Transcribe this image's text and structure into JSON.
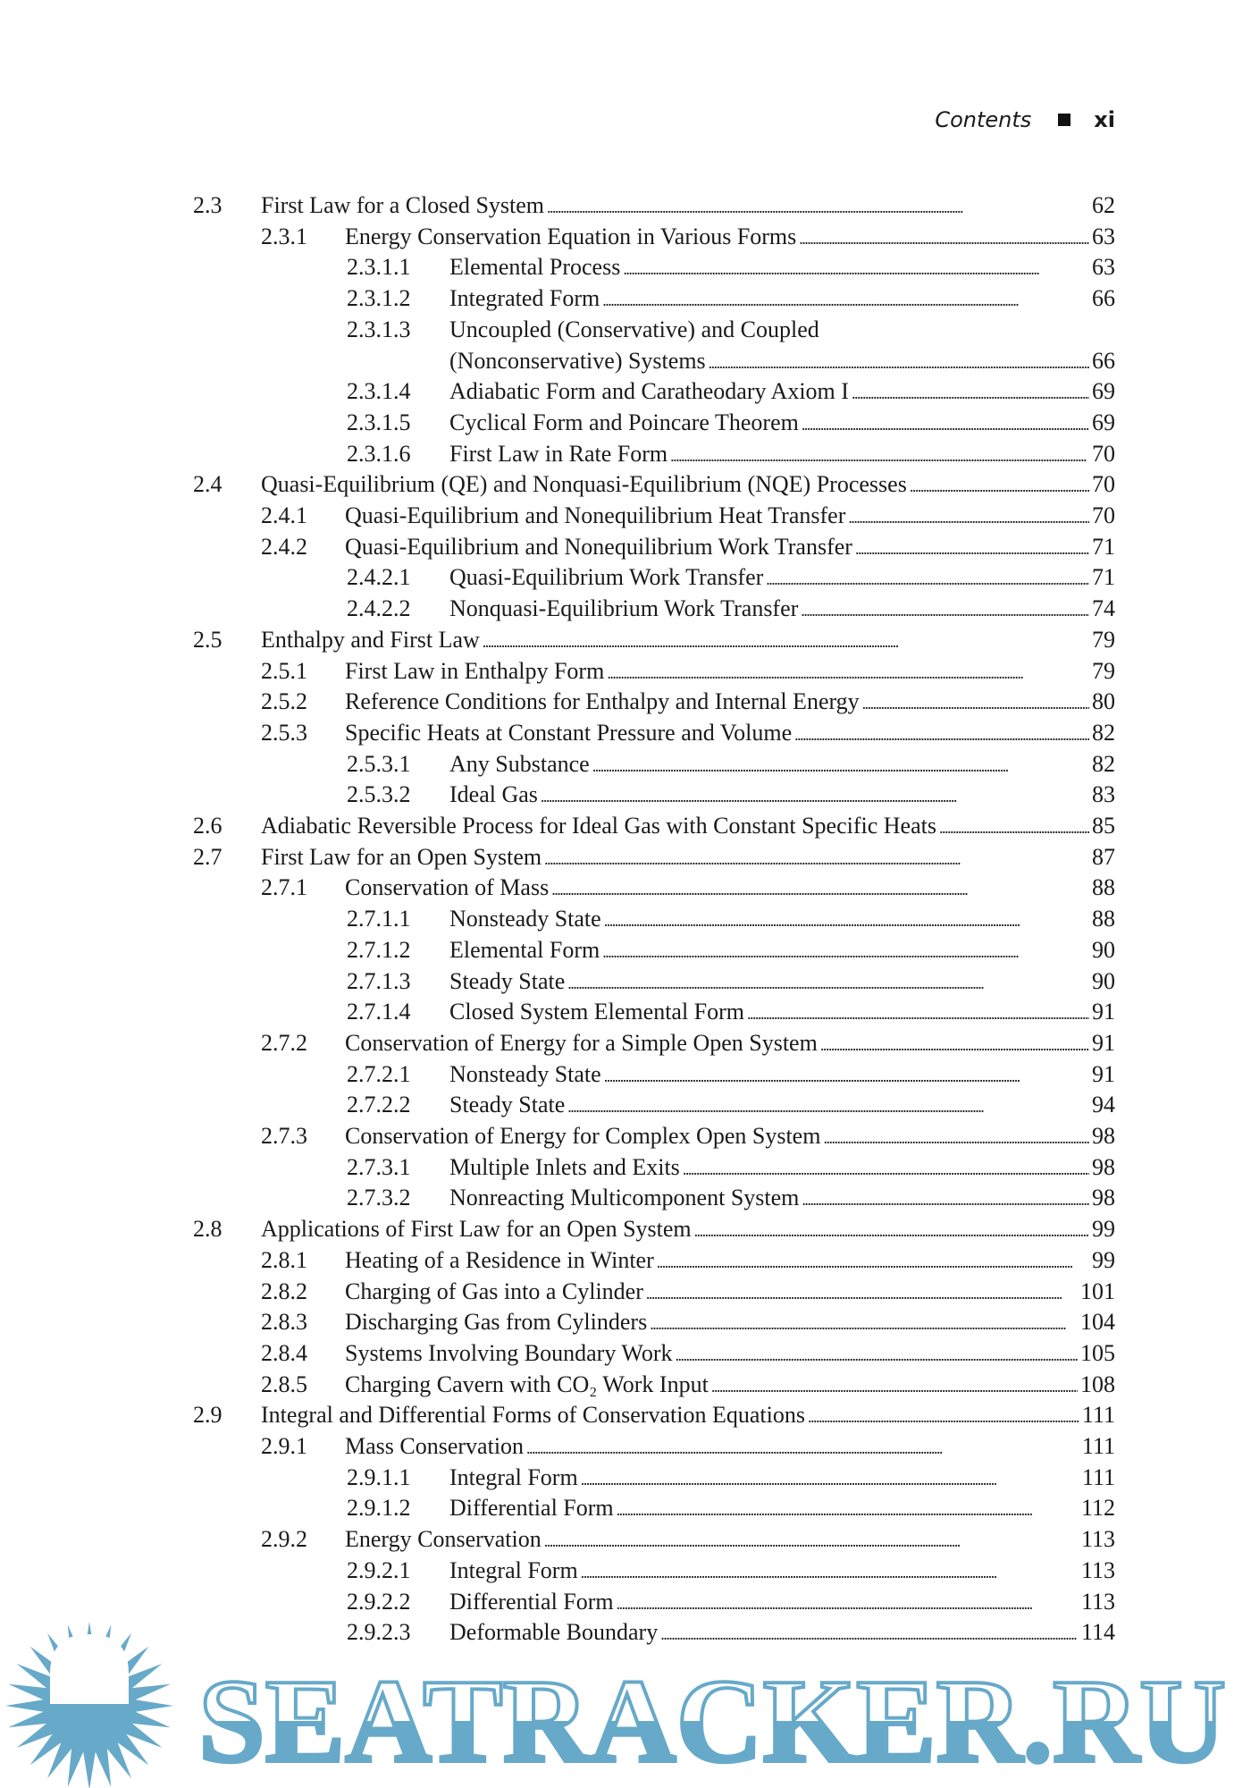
{
  "header": {
    "title": "Contents",
    "page": "xi"
  },
  "entries": [
    {
      "num": "2.3",
      "title": "First Law for a Closed System",
      "page": "62",
      "level": 1
    },
    {
      "num": "2.3.1",
      "title": "Energy Conservation Equation in Various Forms",
      "page": "63",
      "level": 2
    },
    {
      "num": "2.3.1.1",
      "title": "Elemental Process",
      "page": "63",
      "level": 3
    },
    {
      "num": "2.3.1.2",
      "title": "Integrated Form",
      "page": "66",
      "level": 3
    },
    {
      "num": "2.3.1.3",
      "title": "Uncoupled (Conservative) and Coupled",
      "page": "",
      "level": 3
    },
    {
      "num": "",
      "title": "(Nonconservative) Systems",
      "page": "66",
      "level": 3
    },
    {
      "num": "2.3.1.4",
      "title": "Adiabatic Form and Caratheodary Axiom I",
      "page": "69",
      "level": 3
    },
    {
      "num": "2.3.1.5",
      "title": "Cyclical Form and Poincare Theorem",
      "page": "69",
      "level": 3
    },
    {
      "num": "2.3.1.6",
      "title": "First Law in Rate Form",
      "page": "70",
      "level": 3
    },
    {
      "num": "2.4",
      "title": "Quasi-Equilibrium (QE) and Nonquasi-Equilibrium (NQE) Processes",
      "page": "70",
      "level": 1
    },
    {
      "num": "2.4.1",
      "title": "Quasi-Equilibrium and Nonequilibrium Heat Transfer",
      "page": "70",
      "level": 2
    },
    {
      "num": "2.4.2",
      "title": "Quasi-Equilibrium and Nonequilibrium Work Transfer",
      "page": "71",
      "level": 2
    },
    {
      "num": "2.4.2.1",
      "title": "Quasi-Equilibrium Work Transfer",
      "page": "71",
      "level": 3
    },
    {
      "num": "2.4.2.2",
      "title": "Nonquasi-Equilibrium Work Transfer",
      "page": "74",
      "level": 3
    },
    {
      "num": "2.5",
      "title": "Enthalpy and First Law",
      "page": "79",
      "level": 1
    },
    {
      "num": "2.5.1",
      "title": "First Law in Enthalpy Form",
      "page": "79",
      "level": 2
    },
    {
      "num": "2.5.2",
      "title": "Reference Conditions for Enthalpy and Internal Energy",
      "page": "80",
      "level": 2
    },
    {
      "num": "2.5.3",
      "title": "Specific Heats at Constant Pressure and Volume",
      "page": "82",
      "level": 2
    },
    {
      "num": "2.5.3.1",
      "title": "Any Substance",
      "page": "82",
      "level": 3
    },
    {
      "num": "2.5.3.2",
      "title": "Ideal Gas",
      "page": "83",
      "level": 3
    },
    {
      "num": "2.6",
      "title": "Adiabatic Reversible Process for Ideal Gas with Constant Specific Heats",
      "page": "85",
      "level": 1
    },
    {
      "num": "2.7",
      "title": "First Law for an Open System",
      "page": "87",
      "level": 1
    },
    {
      "num": "2.7.1",
      "title": "Conservation of Mass",
      "page": "88",
      "level": 2
    },
    {
      "num": "2.7.1.1",
      "title": "Nonsteady State",
      "page": "88",
      "level": 3
    },
    {
      "num": "2.7.1.2",
      "title": "Elemental Form",
      "page": "90",
      "level": 3
    },
    {
      "num": "2.7.1.3",
      "title": "Steady State",
      "page": "90",
      "level": 3
    },
    {
      "num": "2.7.1.4",
      "title": "Closed System Elemental Form",
      "page": "91",
      "level": 3
    },
    {
      "num": "2.7.2",
      "title": "Conservation of Energy for a Simple Open System",
      "page": "91",
      "level": 2
    },
    {
      "num": "2.7.2.1",
      "title": "Nonsteady State",
      "page": "91",
      "level": 3
    },
    {
      "num": "2.7.2.2",
      "title": "Steady State",
      "page": "94",
      "level": 3
    },
    {
      "num": "2.7.3",
      "title": "Conservation of Energy for Complex Open System",
      "page": "98",
      "level": 2
    },
    {
      "num": "2.7.3.1",
      "title": "Multiple Inlets and Exits",
      "page": "98",
      "level": 3
    },
    {
      "num": "2.7.3.2",
      "title": "Nonreacting Multicomponent System",
      "page": "98",
      "level": 3
    },
    {
      "num": "2.8",
      "title": "Applications of First Law for an Open System",
      "page": "99",
      "level": 1
    },
    {
      "num": "2.8.1",
      "title": "Heating of a Residence in Winter",
      "page": "99",
      "level": 2
    },
    {
      "num": "2.8.2",
      "title": "Charging of Gas into a Cylinder",
      "page": "101",
      "level": 2
    },
    {
      "num": "2.8.3",
      "title": "Discharging Gas from Cylinders",
      "page": "104",
      "level": 2
    },
    {
      "num": "2.8.4",
      "title": "Systems Involving Boundary Work",
      "page": "105",
      "level": 2
    },
    {
      "num": "2.8.5",
      "title": "Charging Cavern with CO₂ Work Input",
      "page": "108",
      "level": 2
    },
    {
      "num": "2.9",
      "title": "Integral and Differential Forms of Conservation Equations",
      "page": "111",
      "level": 1
    },
    {
      "num": "2.9.1",
      "title": "Mass Conservation",
      "page": "111",
      "level": 2
    },
    {
      "num": "2.9.1.1",
      "title": "Integral Form",
      "page": "111",
      "level": 3
    },
    {
      "num": "2.9.1.2",
      "title": "Differential Form",
      "page": "112",
      "level": 3
    },
    {
      "num": "2.9.2",
      "title": "Energy Conservation",
      "page": "113",
      "level": 2
    },
    {
      "num": "2.9.2.1",
      "title": "Integral Form",
      "page": "113",
      "level": 3
    },
    {
      "num": "2.9.2.2",
      "title": "Differential Form",
      "page": "113",
      "level": 3
    },
    {
      "num": "2.9.2.3",
      "title": "Deformable Boundary",
      "page": "114",
      "level": 3
    }
  ],
  "watermark": {
    "text": "SEATRACKER.RU",
    "color": "#67a9c9"
  }
}
